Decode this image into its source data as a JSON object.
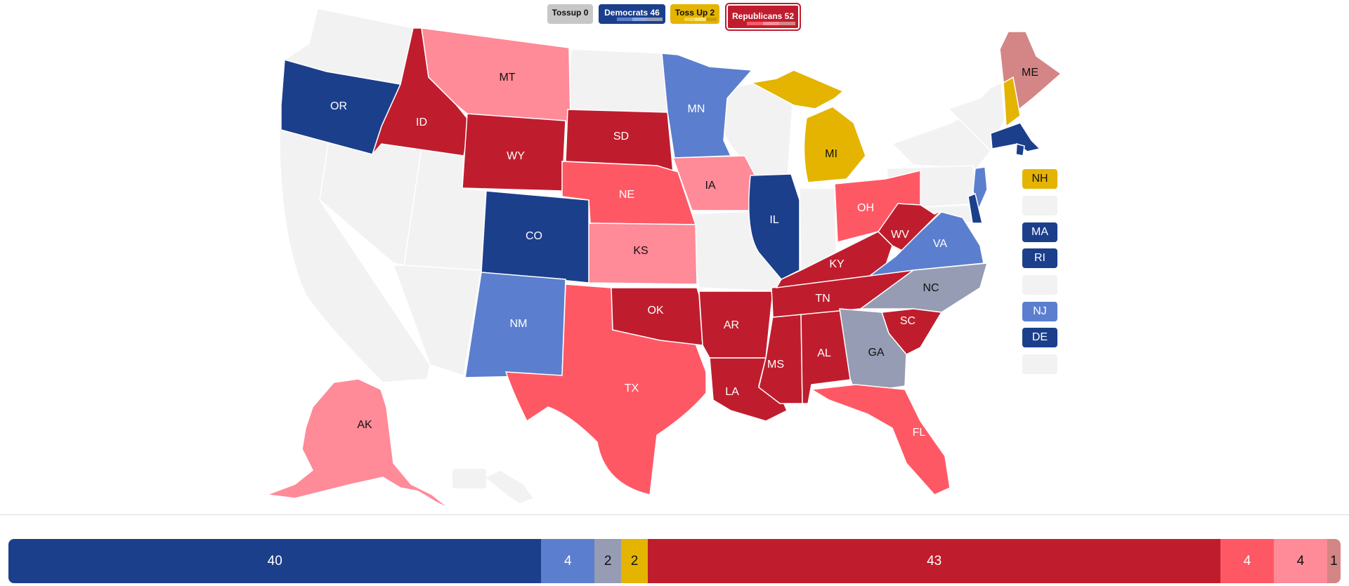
{
  "legend": {
    "tossup": "Tossup 0",
    "democrats": "Democrats 46",
    "tossup2": "Toss Up 2",
    "republicans": "Republicans 52"
  },
  "colors": {
    "empty": "#f2f2f2",
    "d_safe": "#1c3f8c",
    "d_likely": "#5b7fce",
    "d_lean": "#8aa8e0",
    "tossup": "#e4b400",
    "other": "#959cb3",
    "r_safe": "#bf1d2d",
    "r_likely": "#ff5865",
    "r_lean": "#ff8a98",
    "r_tilt": "#d48585",
    "tossup_chip": "#c7c7c7"
  },
  "states": [
    {
      "abbr": "OR",
      "rating": "d_safe"
    },
    {
      "abbr": "ID",
      "rating": "r_safe"
    },
    {
      "abbr": "MT",
      "rating": "r_lean"
    },
    {
      "abbr": "WY",
      "rating": "r_safe"
    },
    {
      "abbr": "SD",
      "rating": "r_safe"
    },
    {
      "abbr": "NE",
      "rating": "r_likely"
    },
    {
      "abbr": "KS",
      "rating": "r_lean"
    },
    {
      "abbr": "CO",
      "rating": "d_safe"
    },
    {
      "abbr": "NM",
      "rating": "d_likely"
    },
    {
      "abbr": "TX",
      "rating": "r_likely"
    },
    {
      "abbr": "OK",
      "rating": "r_safe"
    },
    {
      "abbr": "MN",
      "rating": "d_likely"
    },
    {
      "abbr": "IA",
      "rating": "r_lean"
    },
    {
      "abbr": "AR",
      "rating": "r_safe"
    },
    {
      "abbr": "LA",
      "rating": "r_safe"
    },
    {
      "abbr": "IL",
      "rating": "d_safe"
    },
    {
      "abbr": "MS",
      "rating": "r_safe"
    },
    {
      "abbr": "AL",
      "rating": "r_safe"
    },
    {
      "abbr": "TN",
      "rating": "r_safe"
    },
    {
      "abbr": "KY",
      "rating": "r_safe"
    },
    {
      "abbr": "MI",
      "rating": "tossup"
    },
    {
      "abbr": "OH",
      "rating": "r_likely"
    },
    {
      "abbr": "WV",
      "rating": "r_safe"
    },
    {
      "abbr": "VA",
      "rating": "d_likely"
    },
    {
      "abbr": "NC",
      "rating": "other"
    },
    {
      "abbr": "SC",
      "rating": "r_safe"
    },
    {
      "abbr": "GA",
      "rating": "other"
    },
    {
      "abbr": "FL",
      "rating": "r_likely"
    },
    {
      "abbr": "ME",
      "rating": "r_tilt"
    },
    {
      "abbr": "AK",
      "rating": "r_lean"
    }
  ],
  "side_boxes": [
    {
      "abbr": "NH",
      "rating": "tossup"
    },
    {
      "abbr": "",
      "rating": "empty"
    },
    {
      "abbr": "MA",
      "rating": "d_safe"
    },
    {
      "abbr": "RI",
      "rating": "d_safe"
    },
    {
      "abbr": "",
      "rating": "empty"
    },
    {
      "abbr": "NJ",
      "rating": "d_likely"
    },
    {
      "abbr": "DE",
      "rating": "d_safe"
    },
    {
      "abbr": "",
      "rating": "empty"
    }
  ],
  "seat_bar": [
    {
      "value": 40,
      "rating": "d_safe"
    },
    {
      "value": 4,
      "rating": "d_likely"
    },
    {
      "value": 2,
      "rating": "other"
    },
    {
      "value": 2,
      "rating": "tossup"
    },
    {
      "value": 43,
      "rating": "r_safe"
    },
    {
      "value": 4,
      "rating": "r_likely"
    },
    {
      "value": 4,
      "rating": "r_lean"
    },
    {
      "value": 1,
      "rating": "r_tilt"
    }
  ]
}
